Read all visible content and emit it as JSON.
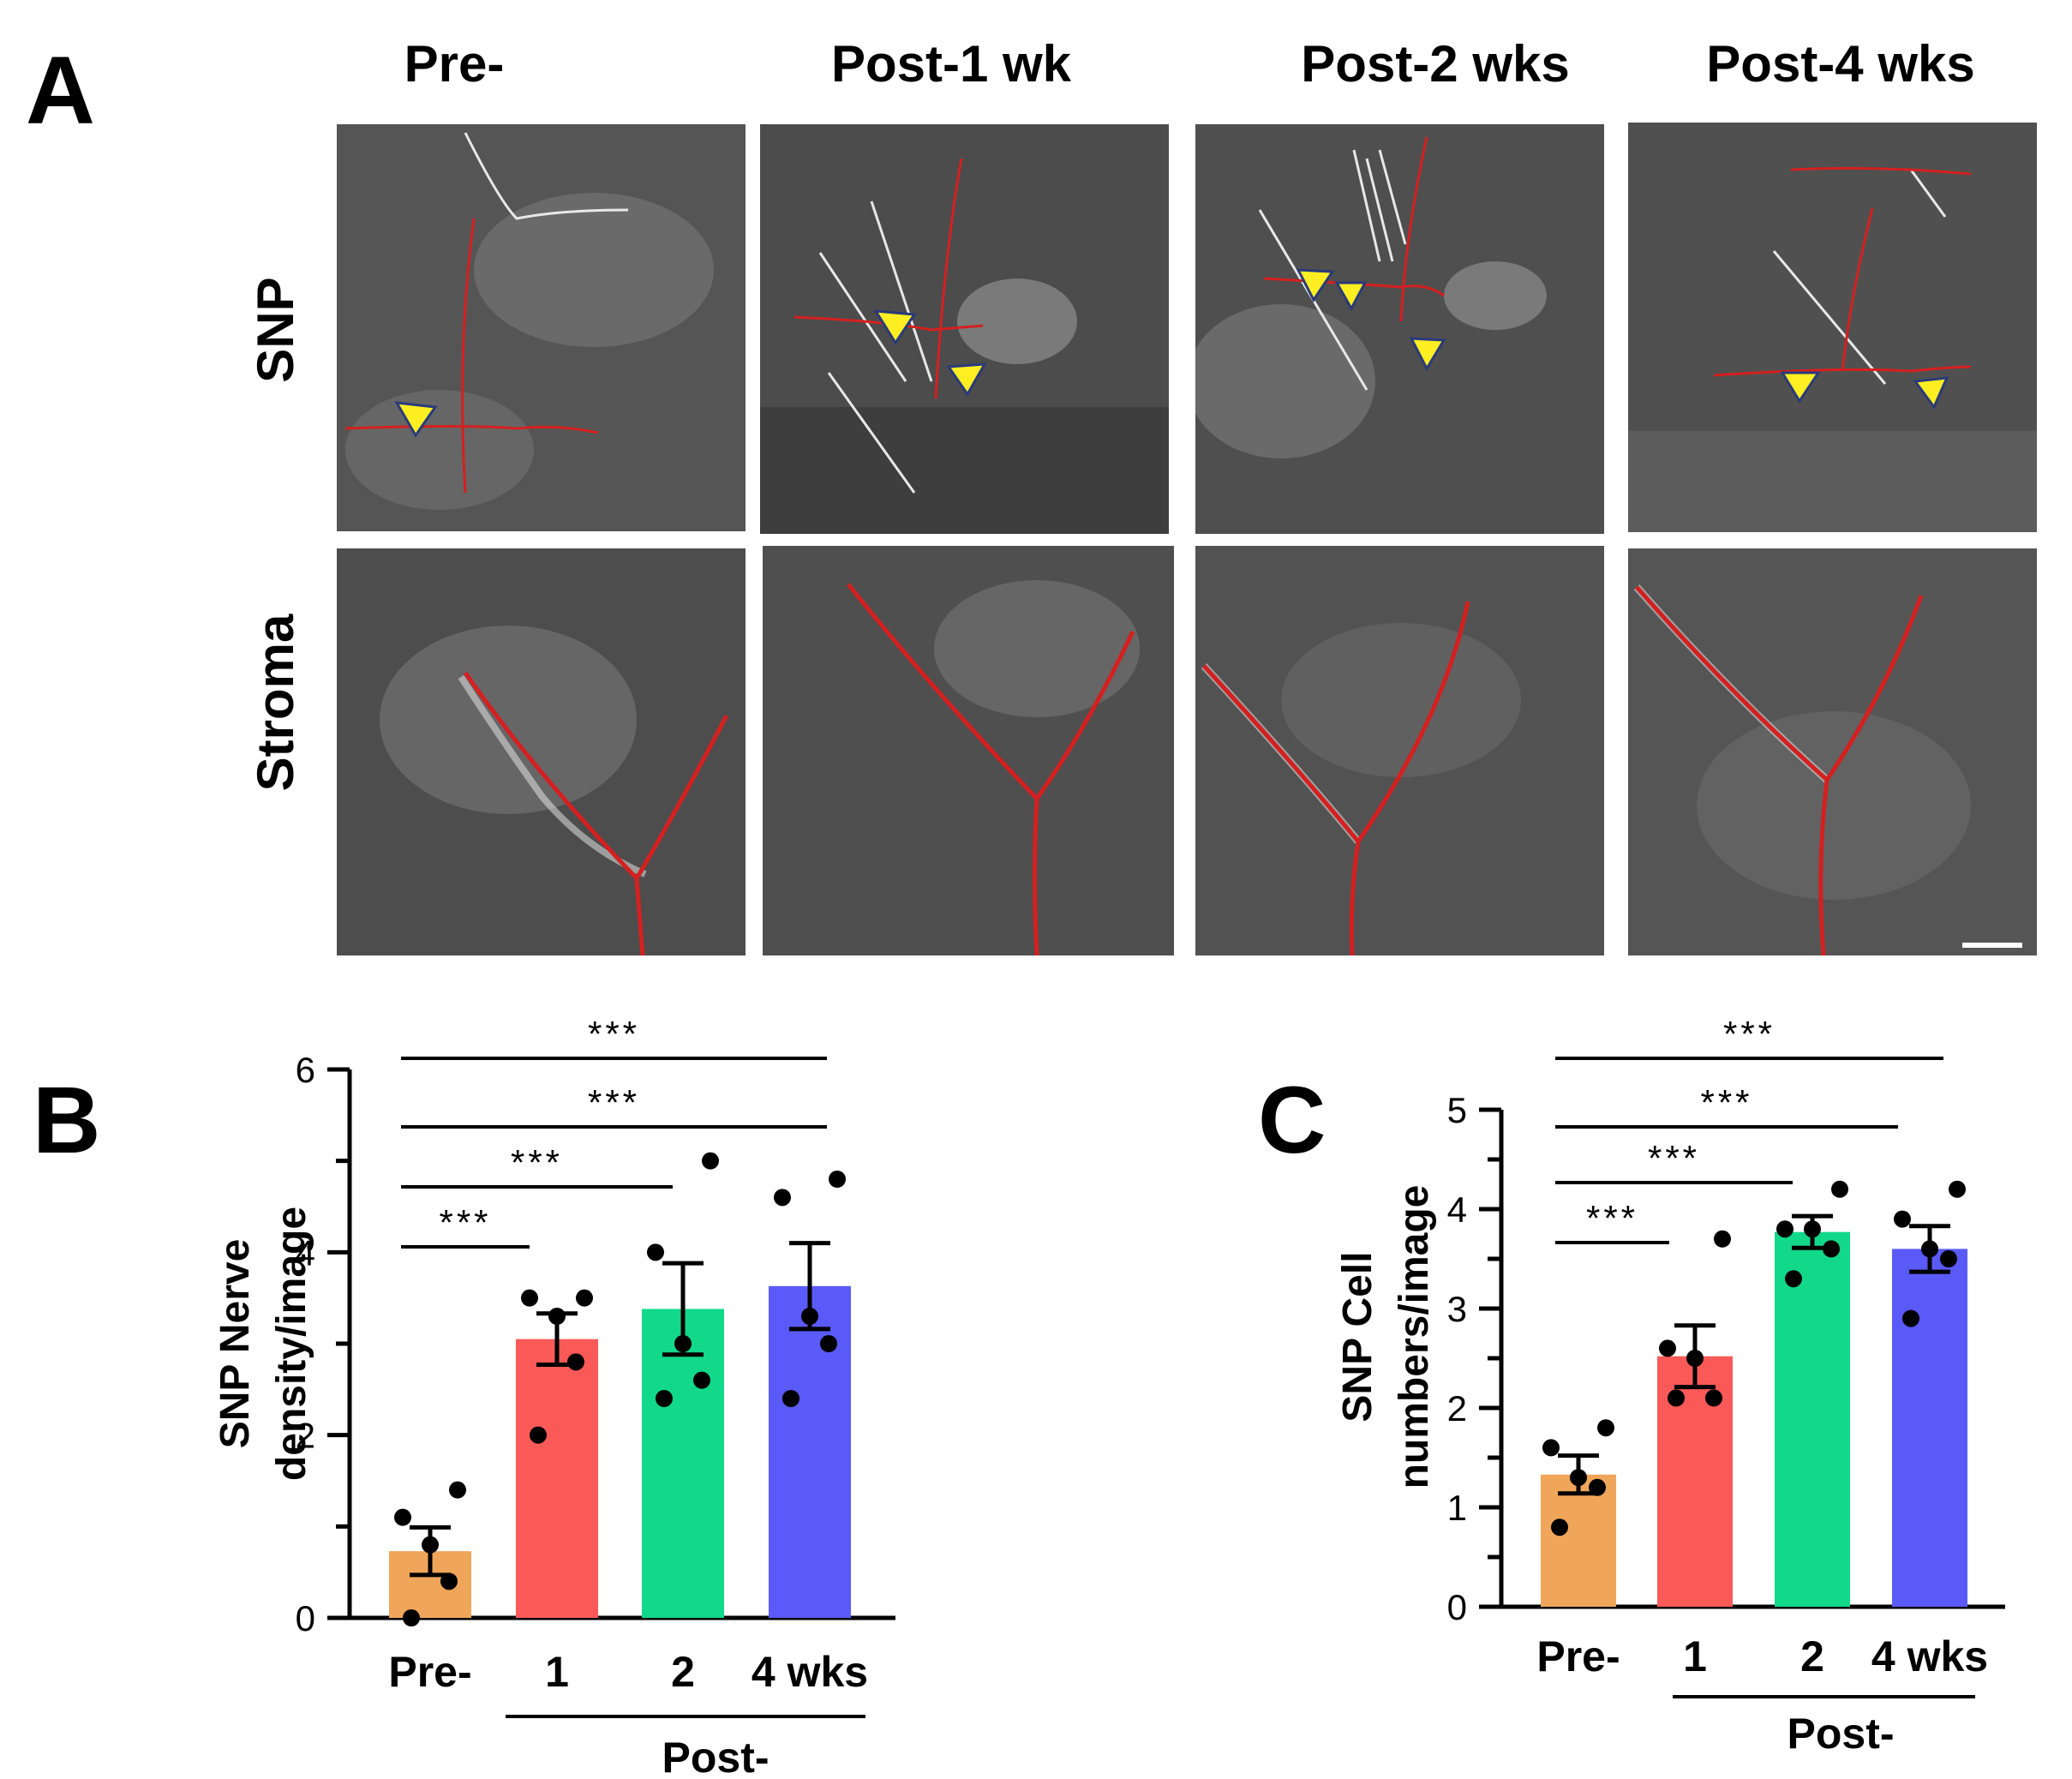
{
  "panel_a": {
    "letter": "A",
    "columns": [
      "Pre-",
      "Post-1 wk",
      "Post-2 wks",
      "Post-4 wks"
    ],
    "rows": [
      "SNP",
      "Stroma"
    ]
  },
  "chart_data": [
    {
      "panel": "B",
      "type": "bar",
      "categories": [
        "Pre-",
        "1",
        "2",
        "4 wks"
      ],
      "group_label": "Post-",
      "ylabel": [
        "SNP Nerve",
        "density/image"
      ],
      "ylim": [
        0,
        6
      ],
      "yticks": [
        0,
        2,
        4,
        6
      ],
      "colors": [
        "#F0A65A",
        "#F95A58",
        "#12D88A",
        "#5A5AF8"
      ],
      "values": [
        0.73,
        3.05,
        3.38,
        3.63
      ],
      "errors": [
        0.26,
        0.28,
        0.5,
        0.47
      ],
      "points": [
        [
          0.0,
          0.4,
          0.8,
          1.1,
          1.4
        ],
        [
          2.0,
          2.8,
          3.3,
          3.5,
          3.5
        ],
        [
          2.4,
          2.6,
          3.0,
          4.0,
          5.0
        ],
        [
          2.4,
          3.0,
          3.3,
          4.6,
          4.8
        ]
      ],
      "significance": [
        {
          "from": 0,
          "to": 1,
          "label": "***"
        },
        {
          "from": 0,
          "to": 2,
          "label": "***"
        },
        {
          "from": 0,
          "to": 3,
          "label": "***"
        },
        {
          "from": 0,
          "to": 3,
          "label": "***"
        }
      ]
    },
    {
      "panel": "C",
      "type": "bar",
      "categories": [
        "Pre-",
        "1",
        "2",
        "4 wks"
      ],
      "group_label": "Post-",
      "ylabel": [
        "SNP Cell",
        "numbers/image"
      ],
      "ylim": [
        0,
        5
      ],
      "yticks": [
        0,
        1,
        2,
        3,
        4,
        5
      ],
      "colors": [
        "#F0A65A",
        "#F95A58",
        "#12D88A",
        "#5A5AF8"
      ],
      "values": [
        1.33,
        2.52,
        3.77,
        3.6
      ],
      "errors": [
        0.19,
        0.31,
        0.16,
        0.23
      ],
      "points": [
        [
          0.8,
          1.2,
          1.3,
          1.6,
          1.8
        ],
        [
          2.1,
          2.1,
          2.5,
          2.6,
          3.7
        ],
        [
          3.3,
          3.6,
          3.8,
          3.8,
          4.2
        ],
        [
          2.9,
          3.5,
          3.6,
          3.9,
          4.2
        ]
      ],
      "significance": [
        {
          "from": 0,
          "to": 1,
          "label": "***"
        },
        {
          "from": 0,
          "to": 2,
          "label": "***"
        },
        {
          "from": 0,
          "to": 3,
          "label": "***"
        },
        {
          "from": 0,
          "to": 3,
          "label": "***"
        }
      ]
    }
  ]
}
